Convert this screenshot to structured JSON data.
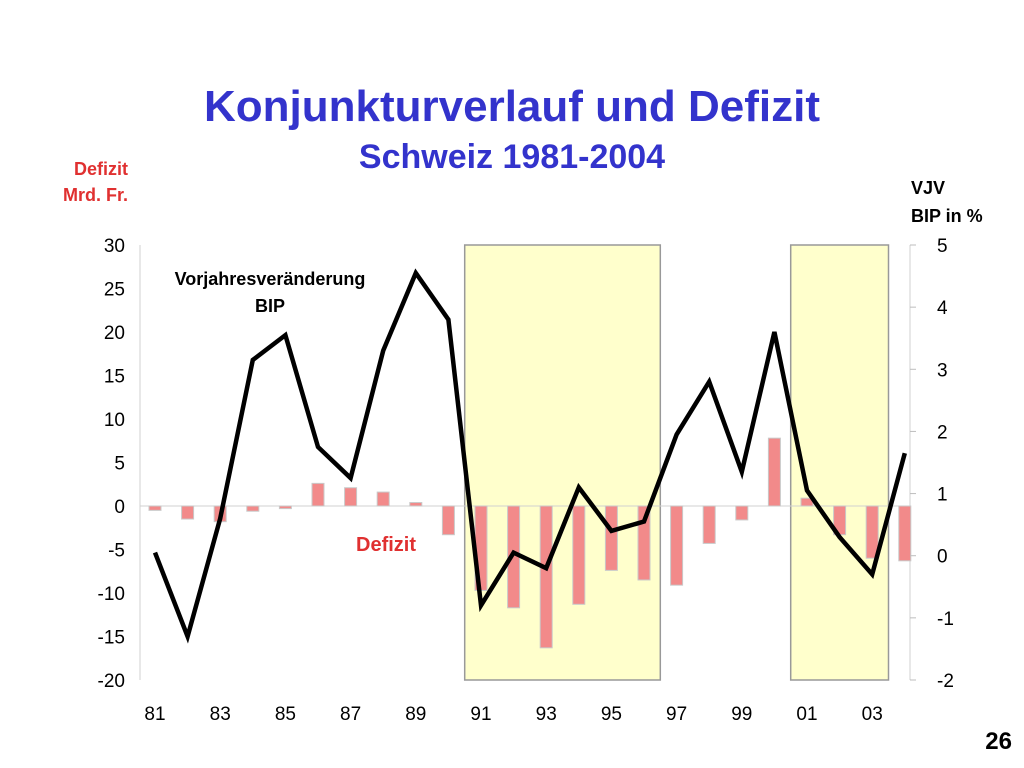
{
  "slide": {
    "title": "Konjunkturverlauf und Defizit",
    "subtitle": "Schweiz 1981-2004",
    "page_number": "26"
  },
  "chart_data": {
    "type": "bar+line",
    "title": "Konjunkturverlauf und Defizit",
    "subtitle": "Schweiz 1981-2004",
    "y_left_label_lines": [
      "Defizit",
      "Mrd. Fr."
    ],
    "y_right_label_lines": [
      "VJV",
      "BIP in %"
    ],
    "y_left_range": [
      -20,
      30
    ],
    "y_left_ticks": [
      30,
      25,
      20,
      15,
      10,
      5,
      0,
      -5,
      -10,
      -15,
      -20
    ],
    "y_right_range": [
      -2,
      5
    ],
    "y_right_ticks": [
      5,
      4,
      3,
      2,
      1,
      0,
      -1,
      -2
    ],
    "x_years": [
      1981,
      1982,
      1983,
      1984,
      1985,
      1986,
      1987,
      1988,
      1989,
      1990,
      1991,
      1992,
      1993,
      1994,
      1995,
      1996,
      1997,
      1998,
      1999,
      2000,
      2001,
      2002,
      2003,
      2004
    ],
    "x_tick_labels": [
      "81",
      "83",
      "85",
      "87",
      "89",
      "91",
      "93",
      "95",
      "97",
      "99",
      "01",
      "03"
    ],
    "recession_shading": [
      [
        1991,
        1996
      ],
      [
        2001,
        2003
      ]
    ],
    "series": [
      {
        "name": "Defizit",
        "type": "bar",
        "axis": "left",
        "color": "#f28a8a",
        "values": [
          -0.5,
          -1.5,
          -1.8,
          -0.6,
          -0.3,
          2.6,
          2.1,
          1.6,
          0.4,
          -3.3,
          -9.7,
          -11.7,
          -16.3,
          -11.3,
          -7.4,
          -8.5,
          -9.1,
          -4.3,
          -1.6,
          7.8,
          0.9,
          -3.3,
          -6.0,
          -6.3
        ]
      },
      {
        "name": "Vorjahresveränderung BIP",
        "type": "line",
        "axis": "right",
        "color": "#000000",
        "values": [
          0.05,
          -1.3,
          0.6,
          3.15,
          3.55,
          1.75,
          1.25,
          3.3,
          4.55,
          3.8,
          -0.8,
          0.05,
          -0.2,
          1.1,
          0.4,
          0.55,
          1.95,
          2.8,
          1.35,
          3.6,
          1.05,
          0.3,
          -0.3,
          1.65
        ]
      }
    ],
    "annotations": {
      "line_label_lines": [
        "Vorjahresveränderung",
        "BIP"
      ],
      "bar_label": "Defizit"
    },
    "colors": {
      "bar_fill": "#f28a8a",
      "bar_stroke": "#c9c9c9",
      "shade_fill": "#ffffcc",
      "shade_stroke": "#999999",
      "line": "#000000",
      "left_axis_label": "#e03030",
      "title": "#3333cc"
    }
  }
}
